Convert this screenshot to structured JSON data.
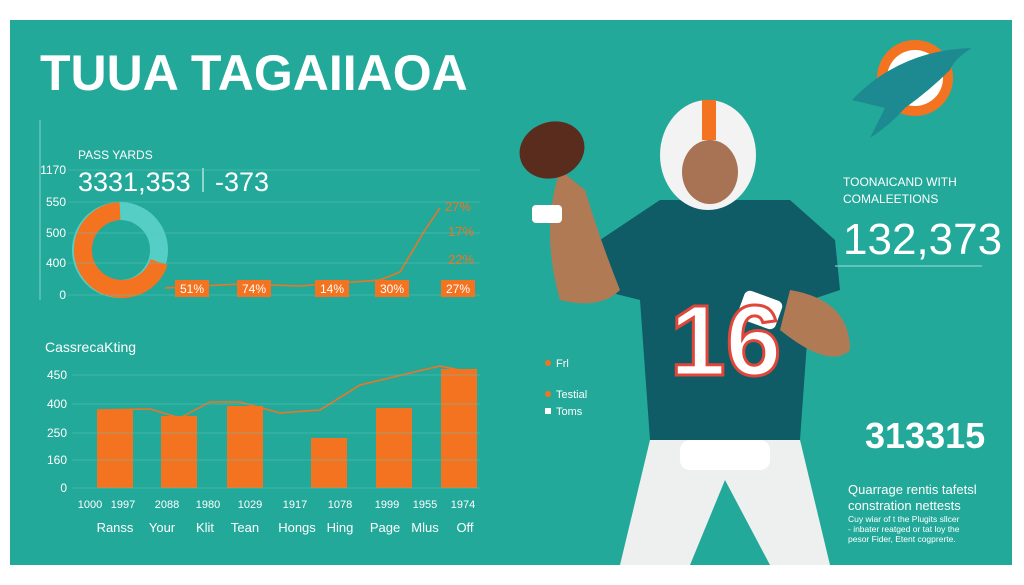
{
  "header": {
    "title": "TUUA TAGAIIAOA"
  },
  "top_panel": {
    "label": "PASS YARDS",
    "headline": "3331,353",
    "delta": "-373",
    "axis_labels": [
      "1170",
      "550",
      "500",
      "400",
      "0"
    ],
    "box_labels": [
      "51%",
      "74%",
      "14%",
      "30%",
      "27%"
    ],
    "side_labels": [
      "27%",
      "17%",
      "22%"
    ]
  },
  "bottom_panel": {
    "title": "CassrecaKting",
    "axis_labels": [
      "450",
      "400",
      "250",
      "160",
      "0"
    ],
    "year_labels": [
      "1000",
      "1997",
      "2088",
      "1980",
      "1029",
      "1917",
      "1078",
      "1999",
      "1955",
      "1974"
    ],
    "categories": [
      "Ranss",
      "Your",
      "Klit",
      "Tean",
      "Hongs",
      "Hing",
      "Page",
      "Mlus",
      "Off"
    ]
  },
  "legend": [
    "Frl",
    "Testial",
    "Toms"
  ],
  "right_panel": {
    "caption": [
      "TOONAICAND WITH",
      "COMALEETIONS"
    ],
    "big_number": "132,373",
    "second_number": "313315",
    "note_title": [
      "Quarrage rentis tafetsl",
      "constration nettests"
    ],
    "note_body": [
      "Cuy wiar of t the Plugits sllcer",
      "- inbater reatged or tat loy the",
      "pesor Fider, Etent cogprerte."
    ]
  }
}
